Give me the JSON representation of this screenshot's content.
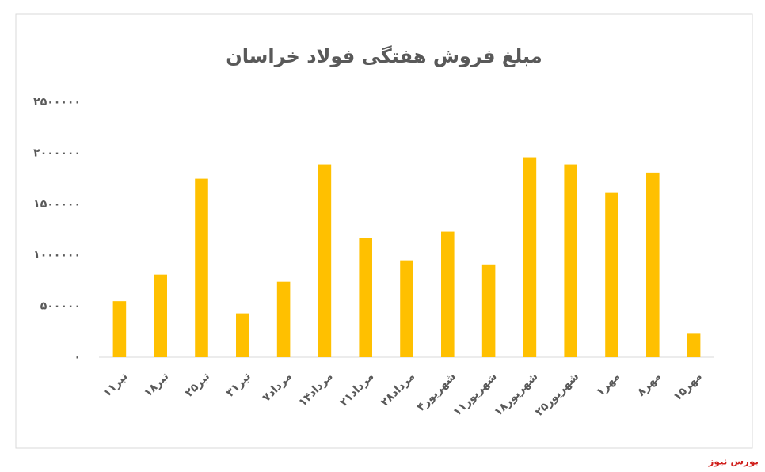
{
  "chart_data": {
    "type": "bar",
    "title": "مبلغ فروش هفتگی فولاد خراسان",
    "categories": [
      "۱۱تیر",
      "۱۸تیر",
      "۲۵تیر",
      "۳۱تیر",
      "۷مرداد",
      "۱۴مرداد",
      "۲۱مرداد",
      "۲۸مرداد",
      "۴شهریور",
      "۱۱شهریور",
      "۱۸شهریور",
      "۲۵شهریور",
      "۱مهر",
      "۸مهر",
      "۱۵مهر"
    ],
    "values": [
      550000,
      810000,
      1750000,
      430000,
      740000,
      1890000,
      1170000,
      950000,
      1230000,
      910000,
      1960000,
      1890000,
      1610000,
      1810000,
      230000
    ],
    "color": "#ffc000",
    "ylim": [
      0,
      2500000
    ],
    "yticks": [
      {
        "value": 0,
        "label": "۰"
      },
      {
        "value": 500000,
        "label": "۵۰۰۰۰۰"
      },
      {
        "value": 1000000,
        "label": "۱۰۰۰۰۰۰"
      },
      {
        "value": 1500000,
        "label": "۱۵۰۰۰۰۰"
      },
      {
        "value": 2000000,
        "label": "۲۰۰۰۰۰۰"
      },
      {
        "value": 2500000,
        "label": "۲۵۰۰۰۰۰"
      }
    ],
    "grid": false,
    "source": "بورس نیوز"
  }
}
